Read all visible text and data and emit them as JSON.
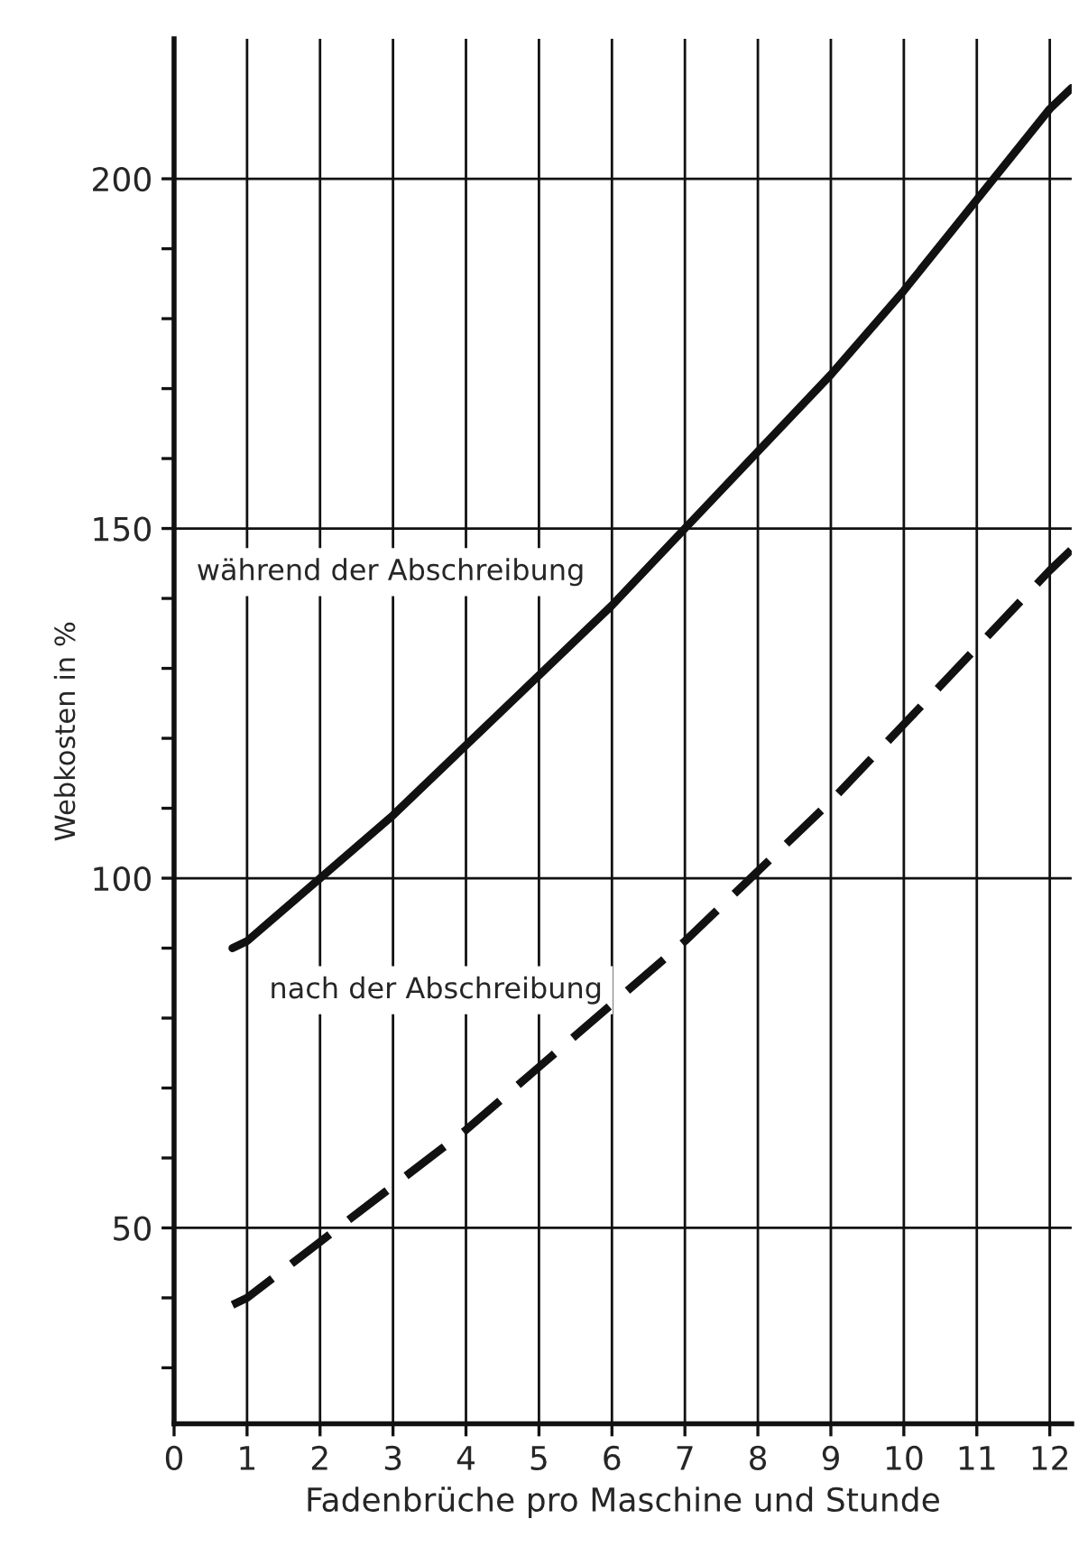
{
  "chart_data": {
    "type": "line",
    "xlabel": "Fadenbrüche pro Maschine und Stunde",
    "ylabel": "Webkosten in %",
    "x": [
      0.8,
      1,
      2,
      3,
      4,
      5,
      6,
      7,
      8,
      9,
      10,
      11,
      12,
      12.3
    ],
    "series": [
      {
        "color": "#111111",
        "line_style": "solid",
        "values": [
          90,
          91,
          100,
          109,
          119,
          129,
          139,
          150,
          161,
          172,
          184,
          197,
          210,
          213
        ]
      },
      {
        "color": "#111111",
        "line_style": "dashed",
        "values": [
          39,
          40,
          48,
          56,
          64,
          73,
          82,
          91,
          101,
          111,
          122,
          133,
          144,
          147
        ]
      }
    ],
    "annotations": [
      "während der Abschreibung",
      "nach der Abschreibung"
    ],
    "xlim": [
      0,
      12.3
    ],
    "ylim": [
      22,
      220
    ],
    "xticks": [
      0,
      1,
      2,
      3,
      4,
      5,
      6,
      7,
      8,
      9,
      10,
      11,
      12
    ],
    "yticks": [
      {
        "value": 30,
        "label": null
      },
      {
        "value": 40,
        "label": null
      },
      50,
      {
        "value": 60,
        "label": null
      },
      {
        "value": 70,
        "label": null
      },
      {
        "value": 80,
        "label": null
      },
      {
        "value": 90,
        "label": null
      },
      100,
      {
        "value": 110,
        "label": null
      },
      {
        "value": 120,
        "label": null
      },
      {
        "value": 130,
        "label": null
      },
      {
        "value": 140,
        "label": null
      },
      150,
      {
        "value": 160,
        "label": null
      },
      {
        "value": 170,
        "label": null
      },
      {
        "value": 180,
        "label": null
      },
      {
        "value": 190,
        "label": null
      },
      200
    ],
    "grid": true,
    "legend": false
  }
}
